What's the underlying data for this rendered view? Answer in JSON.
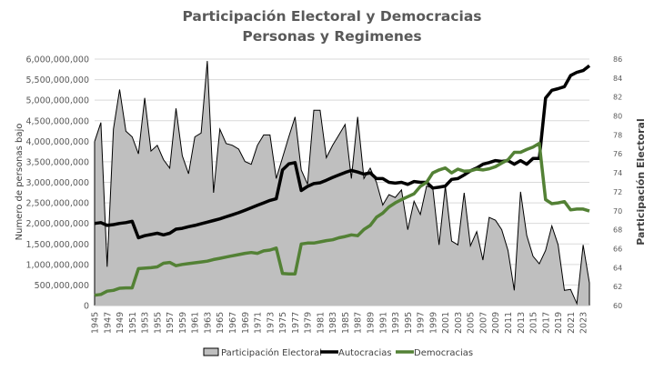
{
  "chart_data": {
    "type": "area+line",
    "title": "Participación Electoral y Democracias",
    "subtitle": "Personas y Regimenes",
    "ylabel": "Numero de personas bajo",
    "y2label": "Participación Electoral",
    "ylim": [
      0,
      6000000000
    ],
    "y2lim": [
      60,
      86
    ],
    "yticks": [
      "0",
      "500,000,000",
      "1,000,000,000",
      "1,500,000,000",
      "2,000,000,000",
      "2,500,000,000",
      "3,000,000,000",
      "3,500,000,000",
      "4,000,000,000",
      "4,500,000,000",
      "5,000,000,000",
      "5,500,000,000",
      "6,000,000,000"
    ],
    "y2ticks": [
      "60",
      "62",
      "64",
      "66",
      "68",
      "70",
      "72",
      "74",
      "76",
      "78",
      "80",
      "82",
      "84",
      "86"
    ],
    "grid": true,
    "legend_position": "bottom",
    "x_start": 1945,
    "x_end": 2024,
    "xtick_step": 2,
    "colors": {
      "area_fill": "#bfbfbf",
      "area_line": "#000000",
      "autocracias": "#000000",
      "democracias": "#538135"
    },
    "series": [
      {
        "name": "Participación Electoral",
        "kind": "area",
        "axis": "right",
        "values": [
          77.3,
          79.3,
          64.1,
          78.6,
          82.8,
          78.4,
          77.8,
          76.0,
          81.9,
          76.3,
          76.9,
          75.4,
          74.5,
          80.8,
          75.8,
          73.9,
          77.8,
          78.2,
          85.8,
          71.9,
          78.6,
          77.1,
          76.9,
          76.5,
          75.2,
          74.9,
          76.9,
          78.0,
          78.0,
          73.4,
          75.6,
          77.8,
          79.9,
          74.3,
          72.8,
          80.6,
          80.6,
          75.6,
          76.9,
          78.0,
          79.1,
          73.4,
          79.9,
          73.4,
          74.5,
          73.0,
          70.6,
          71.7,
          71.4,
          72.2,
          68.0,
          71.0,
          69.6,
          72.6,
          72.4,
          66.4,
          72.6,
          66.8,
          66.4,
          71.9,
          66.3,
          67.8,
          64.8,
          69.3,
          69.0,
          68.0,
          65.8,
          61.6,
          72.0,
          67.4,
          65.2,
          64.4,
          65.8,
          68.4,
          66.4,
          61.6,
          61.7,
          60.2,
          66.4,
          62.4
        ]
      },
      {
        "name": "Autocracias",
        "kind": "line",
        "axis": "left",
        "values": [
          2.0,
          2.02,
          1.95,
          1.97,
          2.0,
          2.02,
          2.05,
          1.65,
          1.7,
          1.73,
          1.76,
          1.72,
          1.76,
          1.86,
          1.88,
          1.92,
          1.95,
          1.99,
          2.03,
          2.07,
          2.11,
          2.16,
          2.21,
          2.26,
          2.32,
          2.38,
          2.44,
          2.5,
          2.56,
          2.6,
          3.3,
          3.45,
          3.48,
          2.8,
          2.9,
          2.97,
          2.99,
          3.05,
          3.12,
          3.18,
          3.24,
          3.29,
          3.25,
          3.2,
          3.23,
          3.09,
          3.09,
          3.0,
          2.98,
          3.0,
          2.95,
          3.02,
          3.0,
          3.0,
          2.86,
          2.88,
          2.91,
          3.07,
          3.09,
          3.18,
          3.28,
          3.35,
          3.44,
          3.48,
          3.53,
          3.51,
          3.53,
          3.44,
          3.53,
          3.44,
          3.58,
          3.58,
          5.05,
          5.24,
          5.28,
          5.33,
          5.6,
          5.68,
          5.72,
          5.84
        ],
        "unit": "billion persons"
      },
      {
        "name": "Democracias",
        "kind": "line",
        "axis": "left",
        "values": [
          0.25,
          0.27,
          0.35,
          0.37,
          0.42,
          0.43,
          0.43,
          0.9,
          0.91,
          0.92,
          0.94,
          1.03,
          1.05,
          0.97,
          1.0,
          1.02,
          1.04,
          1.06,
          1.08,
          1.12,
          1.15,
          1.18,
          1.21,
          1.24,
          1.27,
          1.29,
          1.27,
          1.33,
          1.35,
          1.4,
          0.78,
          0.77,
          0.77,
          1.5,
          1.52,
          1.52,
          1.55,
          1.58,
          1.6,
          1.65,
          1.68,
          1.72,
          1.7,
          1.85,
          1.95,
          2.15,
          2.25,
          2.4,
          2.5,
          2.58,
          2.65,
          2.72,
          2.9,
          3.0,
          3.23,
          3.3,
          3.35,
          3.23,
          3.32,
          3.27,
          3.28,
          3.32,
          3.3,
          3.33,
          3.38,
          3.47,
          3.55,
          3.73,
          3.73,
          3.8,
          3.86,
          3.95,
          2.58,
          2.48,
          2.5,
          2.53,
          2.33,
          2.35,
          2.35,
          2.3
        ],
        "unit": "billion persons"
      }
    ]
  }
}
